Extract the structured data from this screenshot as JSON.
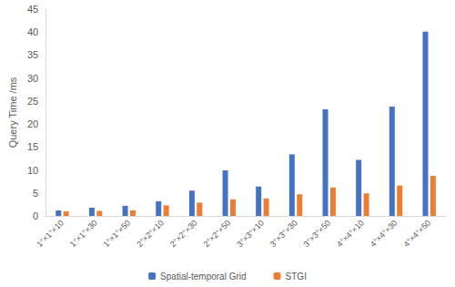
{
  "chart_data": {
    "type": "bar",
    "y_label": "Query Time /ms",
    "categories": [
      "1°×1°×10",
      "1°×1°×30",
      "1°×1°×50",
      "2°×2°×10",
      "2°×2°×30",
      "2°×2°×50",
      "3°×3°×10",
      "3°×3°×30",
      "3°×3°×50",
      "4°×4°×10",
      "4°×4°×30",
      "4°×4°×50"
    ],
    "series": [
      {
        "name": "Spatial-temporal Grid",
        "color": "#4472c4",
        "values": [
          1.2,
          1.8,
          2.2,
          3.2,
          5.5,
          9.9,
          6.4,
          13.4,
          23.2,
          12.2,
          23.8,
          40.1
        ]
      },
      {
        "name": "STGI",
        "color": "#ed7d31",
        "values": [
          1.0,
          1.1,
          1.2,
          2.3,
          2.9,
          3.6,
          3.8,
          4.7,
          6.2,
          4.9,
          6.6,
          8.7
        ]
      }
    ],
    "ylim": [
      0,
      45
    ],
    "yticks": [
      0,
      5,
      10,
      15,
      20,
      25,
      30,
      35,
      40,
      45
    ],
    "grid": false,
    "legend": "bottom"
  }
}
